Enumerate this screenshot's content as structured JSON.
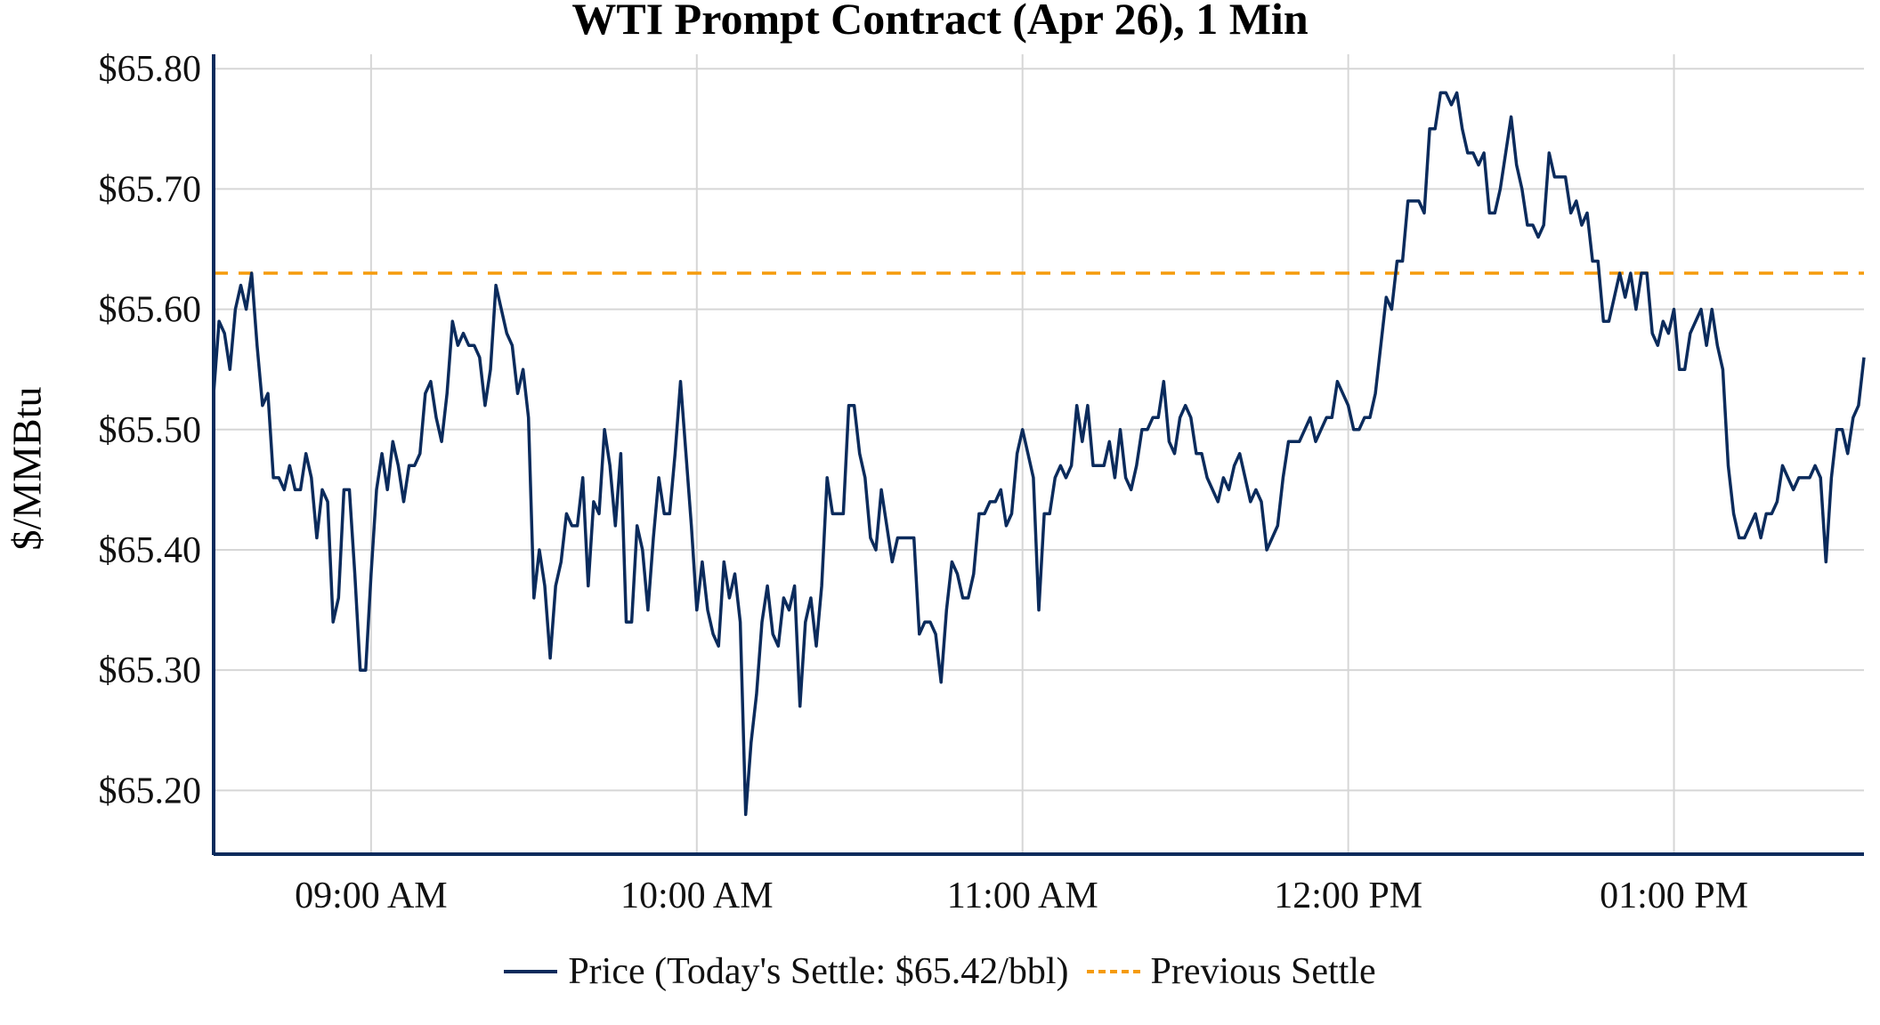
{
  "chart_data": {
    "type": "line",
    "title": "WTI Prompt Contract (Apr 26), 1 Min",
    "xlabel": "",
    "ylabel": "$/MMBtu",
    "x_start": "08:31",
    "x_end": "13:35",
    "xlim_minutes": [
      511,
      815
    ],
    "ylim": [
      65.147,
      65.812
    ],
    "grid": true,
    "x_ticks": [
      {
        "minute": 540,
        "label": "09:00 AM"
      },
      {
        "minute": 600,
        "label": "10:00 AM"
      },
      {
        "minute": 660,
        "label": "11:00 AM"
      },
      {
        "minute": 720,
        "label": "12:00 PM"
      },
      {
        "minute": 780,
        "label": "01:00 PM"
      }
    ],
    "y_ticks": [
      {
        "value": 65.8,
        "label": "$65.80"
      },
      {
        "value": 65.7,
        "label": "$65.70"
      },
      {
        "value": 65.6,
        "label": "$65.60"
      },
      {
        "value": 65.5,
        "label": "$65.50"
      },
      {
        "value": 65.4,
        "label": "$65.40"
      },
      {
        "value": 65.3,
        "label": "$65.30"
      },
      {
        "value": 65.2,
        "label": "$65.20"
      }
    ],
    "legend_position": "bottom",
    "series": [
      {
        "name": "Price (Today's Settle: $65.42/bbl)",
        "color": "#0b2b5c",
        "style": "solid",
        "values": [
          65.53,
          65.59,
          65.58,
          65.55,
          65.6,
          65.62,
          65.6,
          65.63,
          65.57,
          65.52,
          65.53,
          65.46,
          65.46,
          65.45,
          65.47,
          65.45,
          65.45,
          65.48,
          65.46,
          65.41,
          65.45,
          65.44,
          65.34,
          65.36,
          65.45,
          65.45,
          65.38,
          65.3,
          65.3,
          65.38,
          65.45,
          65.48,
          65.45,
          65.49,
          65.47,
          65.44,
          65.47,
          65.47,
          65.48,
          65.53,
          65.54,
          65.51,
          65.49,
          65.53,
          65.59,
          65.57,
          65.58,
          65.57,
          65.57,
          65.56,
          65.52,
          65.55,
          65.62,
          65.6,
          65.58,
          65.57,
          65.53,
          65.55,
          65.51,
          65.36,
          65.4,
          65.37,
          65.31,
          65.37,
          65.39,
          65.43,
          65.42,
          65.42,
          65.46,
          65.37,
          65.44,
          65.43,
          65.5,
          65.47,
          65.42,
          65.48,
          65.34,
          65.34,
          65.42,
          65.4,
          65.35,
          65.41,
          65.46,
          65.43,
          65.43,
          65.48,
          65.54,
          65.48,
          65.42,
          65.35,
          65.39,
          65.35,
          65.33,
          65.32,
          65.39,
          65.36,
          65.38,
          65.34,
          65.18,
          65.24,
          65.28,
          65.34,
          65.37,
          65.33,
          65.32,
          65.36,
          65.35,
          65.37,
          65.27,
          65.34,
          65.36,
          65.32,
          65.37,
          65.46,
          65.43,
          65.43,
          65.43,
          65.52,
          65.52,
          65.48,
          65.46,
          65.41,
          65.4,
          65.45,
          65.42,
          65.39,
          65.41,
          65.41,
          65.41,
          65.41,
          65.33,
          65.34,
          65.34,
          65.33,
          65.29,
          65.35,
          65.39,
          65.38,
          65.36,
          65.36,
          65.38,
          65.43,
          65.43,
          65.44,
          65.44,
          65.45,
          65.42,
          65.43,
          65.48,
          65.5,
          65.48,
          65.46,
          65.35,
          65.43,
          65.43,
          65.46,
          65.47,
          65.46,
          65.47,
          65.52,
          65.49,
          65.52,
          65.47,
          65.47,
          65.47,
          65.49,
          65.46,
          65.5,
          65.46,
          65.45,
          65.47,
          65.5,
          65.5,
          65.51,
          65.51,
          65.54,
          65.49,
          65.48,
          65.51,
          65.52,
          65.51,
          65.48,
          65.48,
          65.46,
          65.45,
          65.44,
          65.46,
          65.45,
          65.47,
          65.48,
          65.46,
          65.44,
          65.45,
          65.44,
          65.4,
          65.41,
          65.42,
          65.46,
          65.49,
          65.49,
          65.49,
          65.5,
          65.51,
          65.49,
          65.5,
          65.51,
          65.51,
          65.54,
          65.53,
          65.52,
          65.5,
          65.5,
          65.51,
          65.51,
          65.53,
          65.57,
          65.61,
          65.6,
          65.64,
          65.64,
          65.69,
          65.69,
          65.69,
          65.68,
          65.75,
          65.75,
          65.78,
          65.78,
          65.77,
          65.78,
          65.75,
          65.73,
          65.73,
          65.72,
          65.73,
          65.68,
          65.68,
          65.7,
          65.73,
          65.76,
          65.72,
          65.7,
          65.67,
          65.67,
          65.66,
          65.67,
          65.73,
          65.71,
          65.71,
          65.71,
          65.68,
          65.69,
          65.67,
          65.68,
          65.64,
          65.64,
          65.59,
          65.59,
          65.61,
          65.63,
          65.61,
          65.63,
          65.6,
          65.63,
          65.63,
          65.58,
          65.57,
          65.59,
          65.58,
          65.6,
          65.55,
          65.55,
          65.58,
          65.59,
          65.6,
          65.57,
          65.6,
          65.57,
          65.55,
          65.47,
          65.43,
          65.41,
          65.41,
          65.42,
          65.43,
          65.41,
          65.43,
          65.43,
          65.44,
          65.47,
          65.46,
          65.45,
          65.46,
          65.46,
          65.46,
          65.47,
          65.46,
          65.39,
          65.46,
          65.5,
          65.5,
          65.48,
          65.51,
          65.52,
          65.56
        ]
      },
      {
        "name": "Previous Settle",
        "color": "#f59b0c",
        "style": "dashed",
        "value": 65.63
      }
    ]
  }
}
